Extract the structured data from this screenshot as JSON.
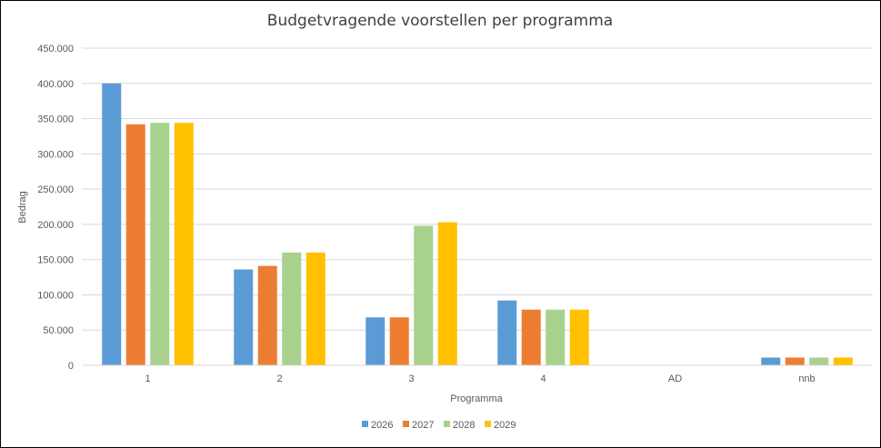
{
  "chart_data": {
    "type": "bar",
    "title": "Budgetvragende voorstellen per programma",
    "xlabel": "Programma",
    "ylabel": "Bedrag",
    "ylim": [
      0,
      450000
    ],
    "yticks": [
      0,
      50000,
      100000,
      150000,
      200000,
      250000,
      300000,
      350000,
      400000,
      450000
    ],
    "ytick_labels": [
      "0",
      "50.000",
      "100.000",
      "150.000",
      "200.000",
      "250.000",
      "300.000",
      "350.000",
      "400.000",
      "450.000"
    ],
    "categories": [
      "1",
      "2",
      "3",
      "4",
      "AD",
      "nnb"
    ],
    "series": [
      {
        "name": "2026",
        "color": "#5B9BD5",
        "values": [
          400000,
          136000,
          68000,
          92000,
          0,
          11000
        ]
      },
      {
        "name": "2027",
        "color": "#ED7D31",
        "values": [
          342000,
          141000,
          68000,
          79000,
          0,
          11000
        ]
      },
      {
        "name": "2028",
        "color": "#A9D18E",
        "values": [
          344000,
          160000,
          198000,
          79000,
          0,
          11000
        ]
      },
      {
        "name": "2029",
        "color": "#FFC000",
        "values": [
          344000,
          160000,
          203000,
          79000,
          0,
          11000
        ]
      }
    ],
    "grid": true,
    "legend_position": "bottom"
  }
}
